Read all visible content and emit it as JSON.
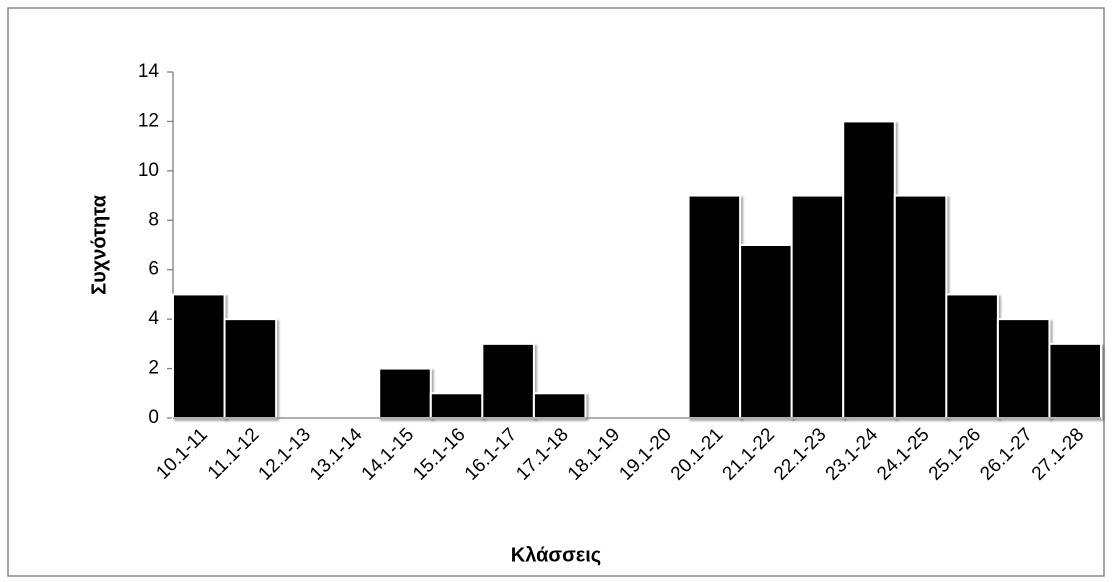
{
  "chart_data": {
    "type": "bar",
    "x_label": "Κλάσσεις",
    "y_label": "Συχνότητα",
    "categories": [
      "10.1-11",
      "11.1-12",
      "12.1-13",
      "13.1-14",
      "14.1-15",
      "15.1-16",
      "16.1-17",
      "17.1-18",
      "18.1-19",
      "19.1-20",
      "20.1-21",
      "21.1-22",
      "22.1-23",
      "23.1-24",
      "24.1-25",
      "25.1-26",
      "26.1-27",
      "27.1-28"
    ],
    "values": [
      5,
      4,
      0,
      0,
      2,
      1,
      3,
      1,
      0,
      0,
      9,
      7,
      9,
      12,
      9,
      5,
      4,
      3
    ],
    "color": "#000000",
    "ylim": [
      0,
      14
    ],
    "yticks": [
      0,
      2,
      4,
      6,
      8,
      10,
      12,
      14
    ],
    "grid": false
  }
}
